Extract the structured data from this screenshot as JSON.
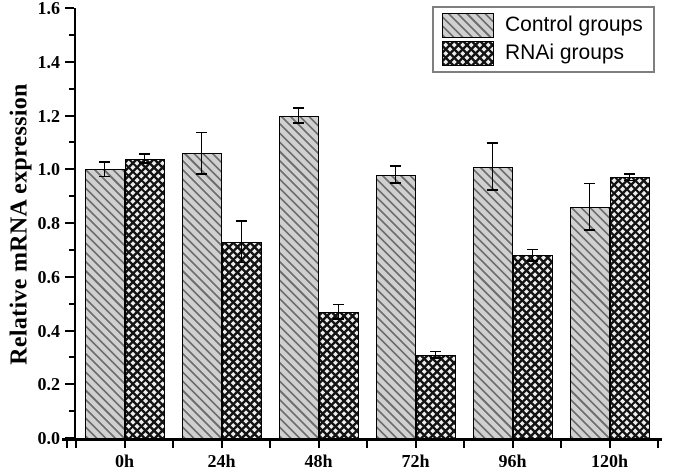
{
  "chart_data": {
    "type": "bar",
    "categories": [
      "0h",
      "24h",
      "48h",
      "72h",
      "96h",
      "120h"
    ],
    "series": [
      {
        "name": "Control groups",
        "pattern": "diagonal-hatch",
        "values": [
          1.0,
          1.06,
          1.2,
          0.98,
          1.01,
          0.86
        ],
        "errors": [
          0.03,
          0.08,
          0.03,
          0.035,
          0.09,
          0.09
        ]
      },
      {
        "name": "RNAi groups",
        "pattern": "crosshatch",
        "values": [
          1.04,
          0.73,
          0.47,
          0.31,
          0.68,
          0.97
        ],
        "errors": [
          0.02,
          0.08,
          0.03,
          0.015,
          0.025,
          0.015
        ]
      }
    ],
    "xlabel": "",
    "ylabel": "Relative mRNA expression",
    "ylim": [
      0,
      1.6
    ],
    "ytick_labels": [
      "0.0",
      "0.2",
      "0.4",
      "0.6",
      "0.8",
      "1.0",
      "1.2",
      "1.4",
      "1.6"
    ],
    "ytick_step": 0.2,
    "minor_ytick_step": 0.1,
    "grid": false,
    "error_bars": true,
    "legend_position": "top-right"
  },
  "colors": {
    "background": "#ffffff",
    "axis": "#000000",
    "text": "#000000",
    "control_fill": "#d0d0d0",
    "control_hatch": "#6e6e6e",
    "rnai_bg": "#ededed",
    "rnai_hatch": "#141414",
    "legend_border": "#7f7f7f"
  }
}
